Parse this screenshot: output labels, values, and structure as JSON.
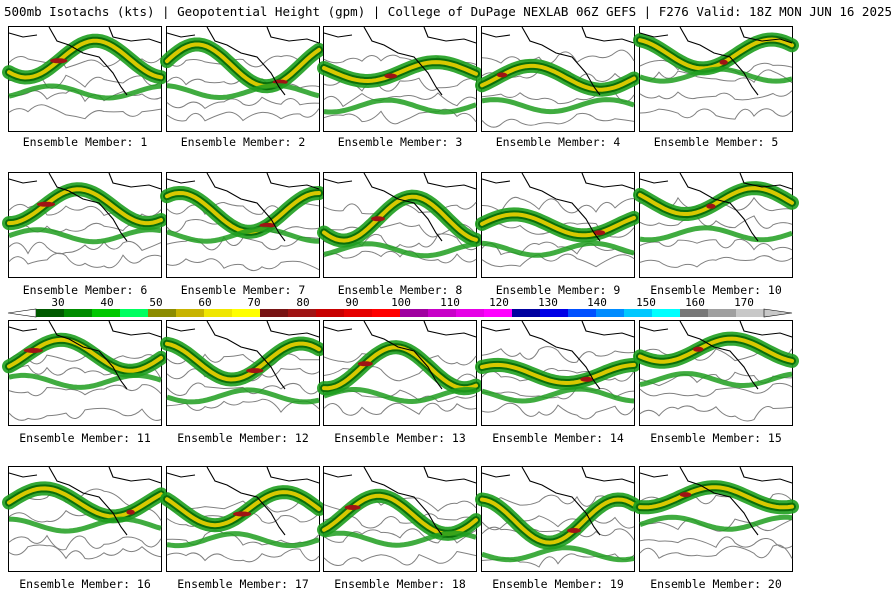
{
  "header": {
    "title": "500mb Isotachs (kts) | Geopotential Height (gpm) | College of DuPage NEXLAB  06Z GEFS | F276 Valid: 18Z MON JUN 16 2025"
  },
  "panels": [
    {
      "label": "Ensemble Member: 1"
    },
    {
      "label": "Ensemble Member: 2"
    },
    {
      "label": "Ensemble Member: 3"
    },
    {
      "label": "Ensemble Member: 4"
    },
    {
      "label": "Ensemble Member: 5"
    },
    {
      "label": "Ensemble Member: 6"
    },
    {
      "label": "Ensemble Member: 7"
    },
    {
      "label": "Ensemble Member: 8"
    },
    {
      "label": "Ensemble Member: 9"
    },
    {
      "label": "Ensemble Member: 10"
    },
    {
      "label": "Ensemble Member: 11"
    },
    {
      "label": "Ensemble Member: 12"
    },
    {
      "label": "Ensemble Member: 13"
    },
    {
      "label": "Ensemble Member: 14"
    },
    {
      "label": "Ensemble Member: 15"
    },
    {
      "label": "Ensemble Member: 16"
    },
    {
      "label": "Ensemble Member: 17"
    },
    {
      "label": "Ensemble Member: 18"
    },
    {
      "label": "Ensemble Member: 19"
    },
    {
      "label": "Ensemble Member: 20"
    }
  ],
  "colorbar": {
    "labels": [
      "30",
      "40",
      "50",
      "60",
      "70",
      "80",
      "90",
      "100",
      "110",
      "120",
      "130",
      "140",
      "150",
      "160",
      "170"
    ],
    "colors": [
      "#005a00",
      "#008c00",
      "#00c800",
      "#00ff60",
      "#8c8c00",
      "#c8b400",
      "#f0e600",
      "#ffff00",
      "#781414",
      "#a01414",
      "#c80000",
      "#e60000",
      "#ff0000",
      "#a000a0",
      "#c800c8",
      "#e600e6",
      "#ff00ff",
      "#0000a0",
      "#0000e6",
      "#0050ff",
      "#008cff",
      "#00c8ff",
      "#00ffff",
      "#787878",
      "#a0a0a0",
      "#c8c8c8"
    ]
  },
  "colors": {
    "wind_green": "#1e9e1e",
    "wind_dark_green": "#0a6e0a",
    "wind_yellow": "#d8c800",
    "wind_red": "#a01414",
    "height_contour": "#808080",
    "coastline": "#000000"
  }
}
